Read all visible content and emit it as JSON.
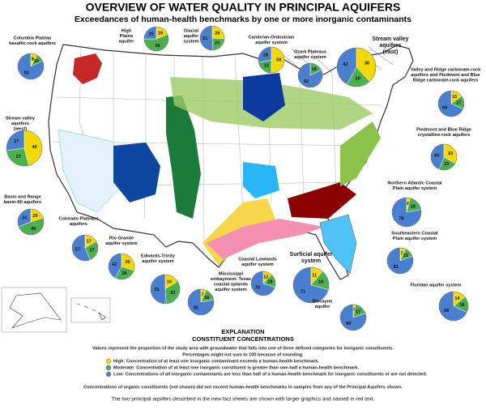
{
  "header": {
    "title": "OVERVIEW OF WATER QUALITY IN PRINCIPAL AQUIFERS",
    "subtitle": "Exceedances of human-health benchmarks by one or more inorganic contaminants"
  },
  "categories": [
    {
      "color": "#f5d800"
    },
    {
      "color": "#4caf50"
    },
    {
      "color": "#4a7fd0"
    }
  ],
  "aquifers": [
    {
      "name": [
        "Columbia Plateau",
        "basaltic-rock aquifers"
      ],
      "values": [
        8,
        10,
        82
      ]
    },
    {
      "name": [
        "High",
        "Plains",
        "aquifer"
      ],
      "values": [
        19,
        56,
        25
      ]
    },
    {
      "name": [
        "Glacial",
        "aquifer",
        "system"
      ],
      "values": [
        26,
        23,
        51
      ]
    },
    {
      "name": [
        "Cambrian-Ordovician",
        "aquifer system"
      ],
      "values": [
        50,
        22,
        28
      ]
    },
    {
      "name": [
        "Ozark Plateaus",
        "aquifer system"
      ],
      "values": [
        0,
        18,
        82
      ]
    },
    {
      "name": [
        "Stream valley",
        "aquifers",
        "(east)"
      ],
      "values": [
        38,
        20,
        42
      ],
      "highlight": true
    },
    {
      "name": [
        "Valley and Ridge carbonate-rock",
        "aquifers and Piedmont and Blue",
        "Ridge carbonate-rock aquifers"
      ],
      "values": [
        15,
        17,
        69
      ]
    },
    {
      "name": [
        "Piedmont and Blue Ridge",
        "crystalline-rock aquifers"
      ],
      "values": [
        33,
        23,
        44
      ]
    },
    {
      "name": [
        "Stream valley",
        "aquifers",
        "(west)"
      ],
      "values": [
        46,
        27,
        27
      ]
    },
    {
      "name": [
        "Basin and Range",
        "basin-fill aquifers"
      ],
      "values": [
        20,
        49,
        31
      ]
    },
    {
      "name": [
        "Colorado Plateaus",
        "aquifers"
      ],
      "values": [
        17,
        27,
        57
      ]
    },
    {
      "name": [
        "Rio Grande",
        "aquifer system"
      ],
      "values": [
        30,
        28,
        42
      ]
    },
    {
      "name": [
        "Edwards-Trinity",
        "aquifer system"
      ],
      "values": [
        16,
        33,
        51
      ]
    },
    {
      "name": [
        "Coastal Lowlands",
        "aquifer system"
      ],
      "values": [
        12,
        18,
        70
      ]
    },
    {
      "name": [
        "Surficial aquifer",
        "system"
      ],
      "values": [
        11,
        18,
        71
      ],
      "highlight": true
    },
    {
      "name": [
        "Mississippi",
        "embayment- Texas",
        "coastal uplands",
        "aquifer system"
      ],
      "values": [
        7,
        16,
        81
      ]
    },
    {
      "name": [
        "Northern Atlantic Coastal",
        "Plain aquifer system"
      ],
      "values": [
        4,
        18,
        78
      ]
    },
    {
      "name": [
        "Southeastern Coastal",
        "Plain aquifer system"
      ],
      "values": [
        7,
        12,
        81
      ]
    },
    {
      "name": [
        "Floridan aquifer system"
      ],
      "values": [
        14,
        18,
        68
      ]
    },
    {
      "name": [
        "Biscayne",
        "aquifer"
      ],
      "values": [
        3,
        17,
        80
      ]
    }
  ],
  "explanation": {
    "title": "EXPLANATION",
    "subtitle": "CONSTITUENT CONCENTRATIONS",
    "text": [
      "Values represent the proportion of the study area with  groundwater that falls into one of three defined categories for inorganic constituents.",
      "Percentages might not sum to 100 because of rounding."
    ],
    "legend": [
      "High: Concentration of at least one inorganic contaminant exceeds a human-health benchmark.",
      "Moderate: Concentration of at least one inorganic constituent is greater than one-half a human-health benchmark.",
      "Low: Concentrations of all inorganic contaminants are less than half of a human-health benchmark for inorganic constituents or are not detected."
    ],
    "note": "Concentrations of organic constituents (not shown) did not exceed human-health benchmarks in samples from any of the Principal Aquifers shown.",
    "footer": "The two principal aquifers described in the new fact sheets are shown with larger graphics and named in red text."
  }
}
